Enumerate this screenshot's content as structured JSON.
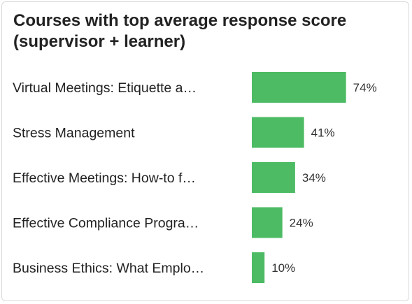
{
  "chart_data": {
    "type": "bar",
    "orientation": "horizontal",
    "title": "Courses with top average response score (supervisor + learner)",
    "categories": [
      "Virtual Meetings: Etiquette a…",
      "Stress Management",
      "Effective Meetings: How-to f…",
      "Effective Compliance Progra…",
      "Business Ethics: What Emplo…"
    ],
    "values": [
      74,
      41,
      34,
      24,
      10
    ],
    "value_labels": [
      "74%",
      "41%",
      "34%",
      "24%",
      "10%"
    ],
    "unit": "%",
    "xlim": [
      0,
      100
    ],
    "grid": false,
    "legend": "none",
    "bar_color": "#4cbb64"
  }
}
